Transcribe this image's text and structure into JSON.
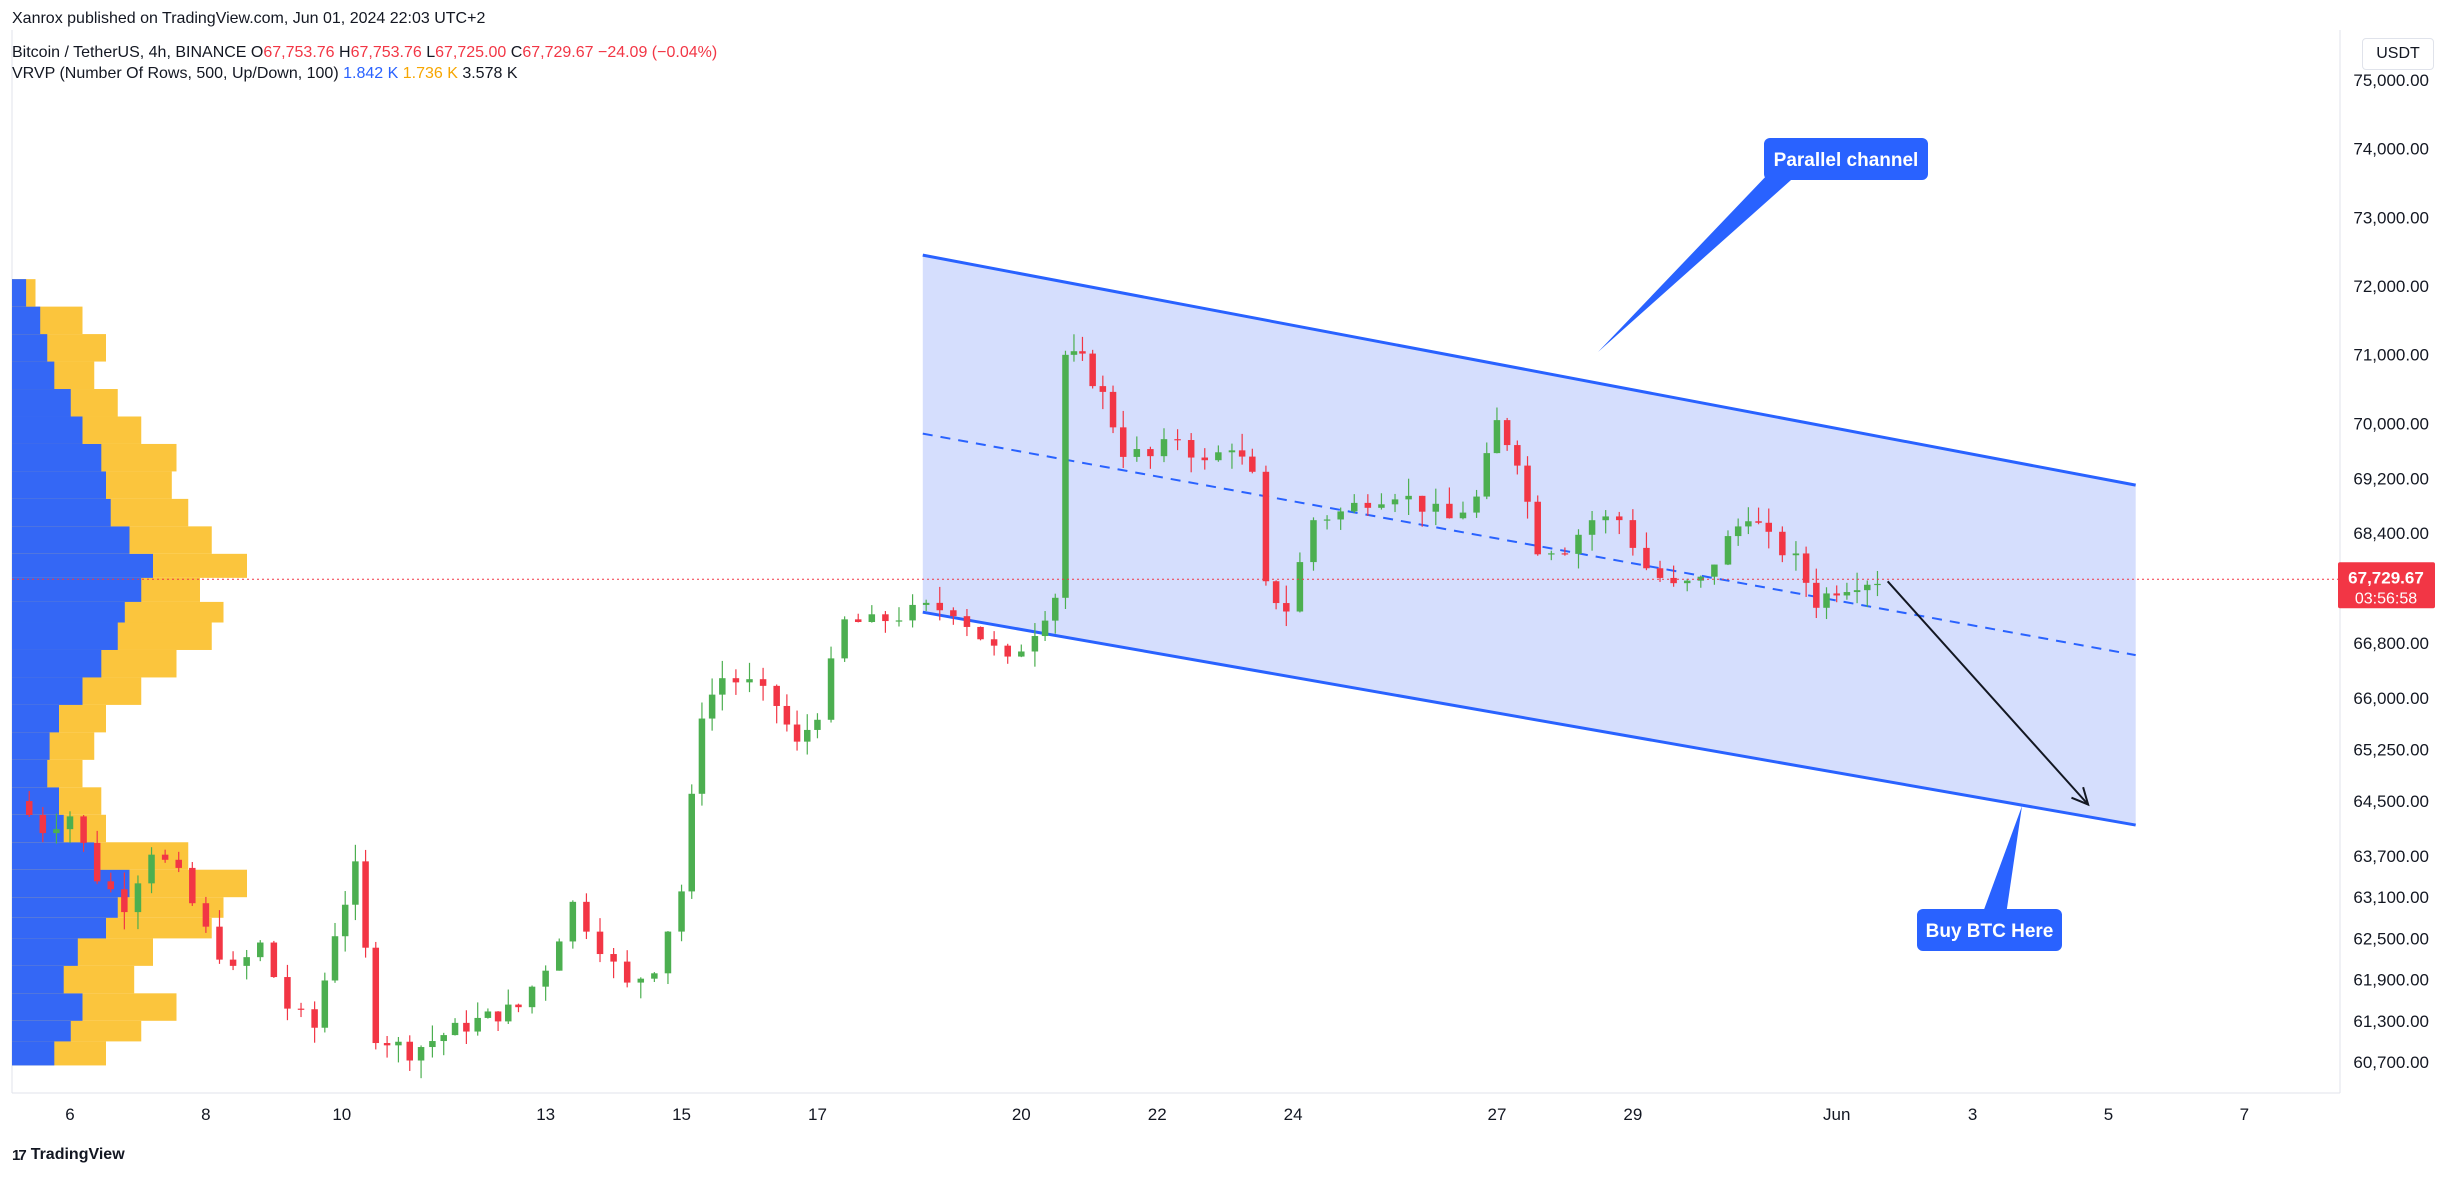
{
  "publisher": "Xanrox published on TradingView.com, Jun 01, 2024 22:03 UTC+2",
  "symbol": {
    "name": "Bitcoin / TetherUS, 4h, BINANCE",
    "o_label": "O",
    "o": "67,753.76",
    "h_label": "H",
    "h": "67,753.76",
    "l_label": "L",
    "l": "67,725.00",
    "c_label": "C",
    "c": "67,729.67",
    "change": "−24.09 (−0.04%)"
  },
  "indicator": {
    "name": "VRVP (Number Of Rows, 500, Up/Down, 100)",
    "up": "1.842 K",
    "down": "1.736 K",
    "total": "3.578 K"
  },
  "currency": "USDT",
  "price_labels": [
    "75,000.00",
    "74,000.00",
    "73,000.00",
    "72,000.00",
    "71,000.00",
    "70,000.00",
    "69,200.00",
    "68,400.00",
    "66,800.00",
    "66,000.00",
    "65,250.00",
    "64,500.00",
    "63,700.00",
    "63,100.00",
    "62,500.00",
    "61,900.00",
    "61,300.00",
    "60,700.00"
  ],
  "last_price": {
    "value": "67,729.67",
    "countdown": "03:56:58"
  },
  "annotations": {
    "channel": "Parallel channel",
    "buy": "Buy BTC Here"
  },
  "footer": "TradingView",
  "colors": {
    "up": "#089981",
    "up_candle": "#4caf50",
    "down": "#f23645",
    "channel_line": "#2962ff",
    "channel_fill": "#d3dcfd",
    "vp_up": "#2962ff",
    "vp_down": "#fbc02d",
    "callout_bg": "#2962ff",
    "last_price_bg": "#f23645"
  },
  "chart_data": {
    "type": "candlestick",
    "timeframe": "4h",
    "x_ticks": [
      {
        "label": "6",
        "day": 6
      },
      {
        "label": "8",
        "day": 8
      },
      {
        "label": "10",
        "day": 10
      },
      {
        "label": "13",
        "day": 13
      },
      {
        "label": "15",
        "day": 15
      },
      {
        "label": "17",
        "day": 17
      },
      {
        "label": "20",
        "day": 20
      },
      {
        "label": "22",
        "day": 22
      },
      {
        "label": "24",
        "day": 24
      },
      {
        "label": "27",
        "day": 27
      },
      {
        "label": "29",
        "day": 29
      },
      {
        "label": "Jun",
        "day": 32
      },
      {
        "label": "3",
        "day": 34
      },
      {
        "label": "5",
        "day": 36
      },
      {
        "label": "7",
        "day": 38
      }
    ],
    "ohlc_keypoints": [
      [
        5.2,
        64500
      ],
      [
        5.6,
        64100
      ],
      [
        6.0,
        64300
      ],
      [
        6.4,
        63400
      ],
      [
        6.8,
        63000
      ],
      [
        7.2,
        63800
      ],
      [
        7.6,
        63400
      ],
      [
        8.0,
        62600
      ],
      [
        8.4,
        62000
      ],
      [
        8.8,
        62400
      ],
      [
        9.2,
        61500
      ],
      [
        9.6,
        61200
      ],
      [
        9.9,
        62600
      ],
      [
        10.2,
        63500
      ],
      [
        10.5,
        61100
      ],
      [
        11.0,
        60850
      ],
      [
        11.5,
        61100
      ],
      [
        12.0,
        61300
      ],
      [
        12.6,
        61500
      ],
      [
        13.0,
        62100
      ],
      [
        13.4,
        63000
      ],
      [
        13.8,
        62400
      ],
      [
        14.2,
        61800
      ],
      [
        14.6,
        62100
      ],
      [
        15.0,
        63200
      ],
      [
        15.3,
        65800
      ],
      [
        15.6,
        66300
      ],
      [
        16.0,
        66200
      ],
      [
        16.4,
        65900
      ],
      [
        16.7,
        65300
      ],
      [
        17.0,
        65800
      ],
      [
        17.4,
        67100
      ],
      [
        17.8,
        67100
      ],
      [
        18.2,
        67200
      ],
      [
        18.6,
        67300
      ],
      [
        19.0,
        67300
      ],
      [
        19.4,
        66900
      ],
      [
        19.8,
        66500
      ],
      [
        20.2,
        67000
      ],
      [
        20.5,
        67500
      ],
      [
        20.65,
        71000
      ],
      [
        20.9,
        70900
      ],
      [
        21.2,
        70400
      ],
      [
        21.5,
        69600
      ],
      [
        21.9,
        69500
      ],
      [
        22.3,
        69800
      ],
      [
        22.7,
        69400
      ],
      [
        23.1,
        69700
      ],
      [
        23.4,
        69200
      ],
      [
        23.6,
        67600
      ],
      [
        23.9,
        67300
      ],
      [
        24.3,
        68600
      ],
      [
        24.7,
        68700
      ],
      [
        25.1,
        68900
      ],
      [
        25.5,
        69000
      ],
      [
        25.9,
        68800
      ],
      [
        26.3,
        68600
      ],
      [
        26.7,
        68900
      ],
      [
        27.0,
        70000
      ],
      [
        27.3,
        69500
      ],
      [
        27.6,
        68200
      ],
      [
        28.0,
        68200
      ],
      [
        28.4,
        68600
      ],
      [
        28.8,
        68600
      ],
      [
        29.2,
        67900
      ],
      [
        29.6,
        67600
      ],
      [
        30.0,
        67700
      ],
      [
        30.4,
        68300
      ],
      [
        30.7,
        68700
      ],
      [
        31.0,
        68300
      ],
      [
        31.4,
        68000
      ],
      [
        31.7,
        67400
      ],
      [
        32.0,
        67600
      ],
      [
        32.3,
        67700
      ],
      [
        32.6,
        67730
      ]
    ],
    "channel": {
      "upper": {
        "start": {
          "day": 18.55,
          "price": 72450
        },
        "end": {
          "day": 36.4,
          "price": 69100
        }
      },
      "lower": {
        "start": {
          "day": 18.55,
          "price": 67250
        },
        "end": {
          "day": 36.4,
          "price": 64150
        }
      },
      "middle": {
        "start": {
          "day": 18.55,
          "price": 69850
        },
        "end": {
          "day": 36.4,
          "price": 66625
        }
      }
    },
    "projection": {
      "start": {
        "day": 32.75,
        "price": 67700
      },
      "end": {
        "day": 35.7,
        "price": 64450
      }
    },
    "volume_profile": [
      [
        60650,
        40,
        18
      ],
      [
        61000,
        55,
        25
      ],
      [
        61300,
        70,
        30
      ],
      [
        61700,
        52,
        22
      ],
      [
        62100,
        60,
        28
      ],
      [
        62500,
        85,
        40
      ],
      [
        62800,
        90,
        45
      ],
      [
        63100,
        100,
        50
      ],
      [
        63500,
        75,
        35
      ],
      [
        63900,
        40,
        22
      ],
      [
        64300,
        38,
        20
      ],
      [
        64700,
        30,
        15
      ],
      [
        65100,
        35,
        16
      ],
      [
        65500,
        40,
        20
      ],
      [
        65900,
        55,
        30
      ],
      [
        66300,
        70,
        38
      ],
      [
        66700,
        85,
        45
      ],
      [
        67100,
        90,
        48
      ],
      [
        67400,
        80,
        55
      ],
      [
        67750,
        100,
        60
      ],
      [
        68100,
        85,
        50
      ],
      [
        68500,
        75,
        42
      ],
      [
        68900,
        68,
        40
      ],
      [
        69300,
        70,
        38
      ],
      [
        69700,
        55,
        30
      ],
      [
        70100,
        45,
        25
      ],
      [
        70500,
        35,
        18
      ],
      [
        70900,
        40,
        15
      ],
      [
        71300,
        30,
        12
      ],
      [
        71700,
        10,
        6
      ]
    ],
    "ylim": [
      60300,
      75300
    ],
    "last_price": 67729.67
  }
}
